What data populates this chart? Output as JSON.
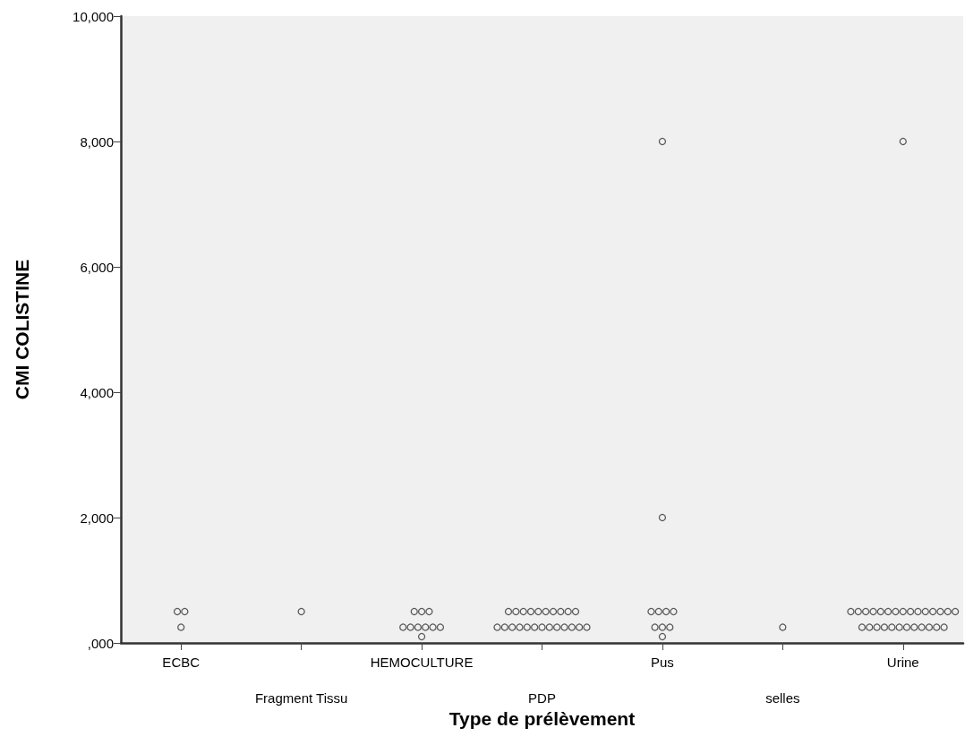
{
  "chart_data": {
    "type": "scatter",
    "xlabel": "Type de prélèvement",
    "ylabel": "CMI COLISTINE",
    "categories": [
      "ECBC",
      "Fragment Tissu",
      "HEMOCULTURE",
      "PDP",
      "Pus",
      "selles",
      "Urine"
    ],
    "series": [
      {
        "color": "#333333",
        "x": [
          "ECBC",
          "ECBC",
          "ECBC",
          "Fragment Tissu",
          "HEMOCULTURE",
          "HEMOCULTURE",
          "HEMOCULTURE",
          "HEMOCULTURE",
          "HEMOCULTURE",
          "HEMOCULTURE",
          "HEMOCULTURE",
          "HEMOCULTURE",
          "HEMOCULTURE",
          "HEMOCULTURE",
          "PDP",
          "PDP",
          "PDP",
          "PDP",
          "PDP",
          "PDP",
          "PDP",
          "PDP",
          "PDP",
          "PDP",
          "PDP",
          "PDP",
          "PDP",
          "PDP",
          "PDP",
          "PDP",
          "PDP",
          "PDP",
          "PDP",
          "PDP",
          "PDP",
          "PDP",
          "PDP",
          "Pus",
          "Pus",
          "Pus",
          "Pus",
          "Pus",
          "Pus",
          "Pus",
          "Pus",
          "Pus",
          "Pus",
          "selles",
          "Urine",
          "Urine",
          "Urine",
          "Urine",
          "Urine",
          "Urine",
          "Urine",
          "Urine",
          "Urine",
          "Urine",
          "Urine",
          "Urine",
          "Urine",
          "Urine",
          "Urine",
          "Urine",
          "Urine",
          "Urine",
          "Urine",
          "Urine",
          "Urine",
          "Urine",
          "Urine",
          "Urine",
          "Urine",
          "Urine",
          "Urine",
          "Urine"
        ],
        "values": [
          500,
          500,
          250,
          500,
          500,
          500,
          500,
          250,
          250,
          250,
          250,
          250,
          250,
          100,
          500,
          500,
          500,
          500,
          500,
          500,
          500,
          500,
          500,
          500,
          250,
          250,
          250,
          250,
          250,
          250,
          250,
          250,
          250,
          250,
          250,
          250,
          250,
          8000,
          2000,
          500,
          500,
          500,
          500,
          250,
          250,
          250,
          100,
          250,
          8000,
          500,
          500,
          500,
          500,
          500,
          500,
          500,
          500,
          500,
          500,
          500,
          500,
          500,
          500,
          500,
          250,
          250,
          250,
          250,
          250,
          250,
          250,
          250,
          250,
          250,
          250,
          250
        ]
      }
    ],
    "ylim": [
      0,
      10000
    ],
    "yticks": [
      {
        "value": 0,
        "label": ",000"
      },
      {
        "value": 2000,
        "label": "2,000"
      },
      {
        "value": 4000,
        "label": "4,000"
      },
      {
        "value": 6000,
        "label": "6,000"
      },
      {
        "value": 8000,
        "label": "8,000"
      },
      {
        "value": 10000,
        "label": "10,000"
      }
    ],
    "grid": false,
    "marker": "circle"
  }
}
